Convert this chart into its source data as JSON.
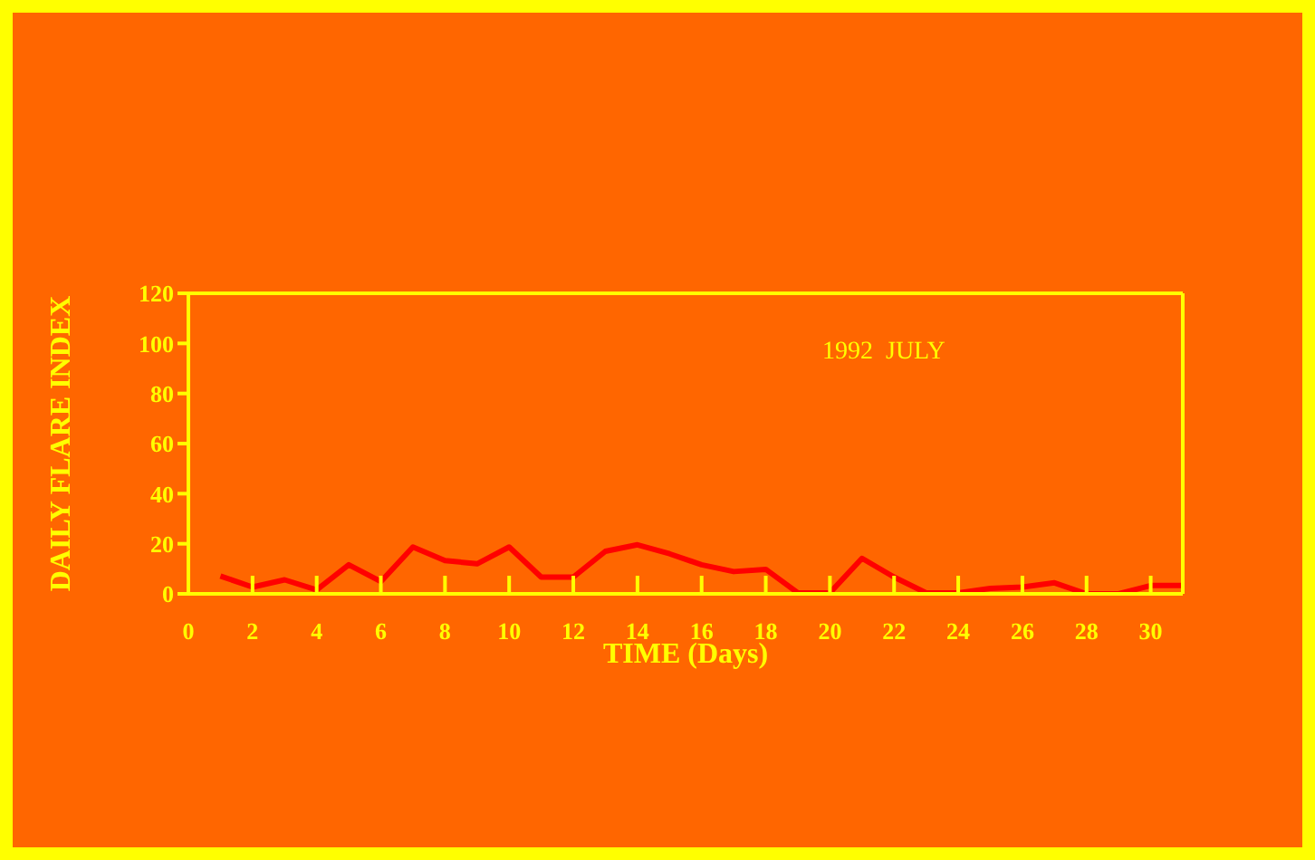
{
  "chart_data": {
    "type": "line",
    "xlabel": "TIME (Days)",
    "ylabel": "DAILY FLARE INDEX",
    "annotations": [
      "1992  JULY"
    ],
    "x": [
      1,
      2,
      3,
      4,
      5,
      6,
      7,
      8,
      9,
      10,
      11,
      12,
      13,
      14,
      15,
      16,
      17,
      18,
      19,
      20,
      21,
      22,
      23,
      24,
      25,
      26,
      27,
      28,
      29,
      30,
      31
    ],
    "series": [
      {
        "color": "#ff0000",
        "values": [
          7.1,
          2.7,
          5.6,
          1.6,
          11.6,
          4.9,
          18.7,
          13.3,
          12,
          18.7,
          6.7,
          6.7,
          17,
          19.6,
          16,
          11.6,
          8.9,
          9.8,
          0.4,
          0.4,
          14.2,
          6.7,
          0.4,
          0.4,
          2.2,
          2.7,
          4.4,
          0,
          0,
          3.3,
          3.3
        ]
      }
    ],
    "xlim": [
      0,
      31
    ],
    "xticks": [
      0,
      2,
      4,
      6,
      8,
      10,
      12,
      14,
      16,
      18,
      20,
      22,
      24,
      26,
      28,
      30
    ],
    "ylim": [
      0,
      120
    ],
    "yticks": [
      0,
      20,
      40,
      60,
      80,
      100,
      120
    ],
    "grid": false,
    "marker": "none",
    "line_style": "solid"
  }
}
